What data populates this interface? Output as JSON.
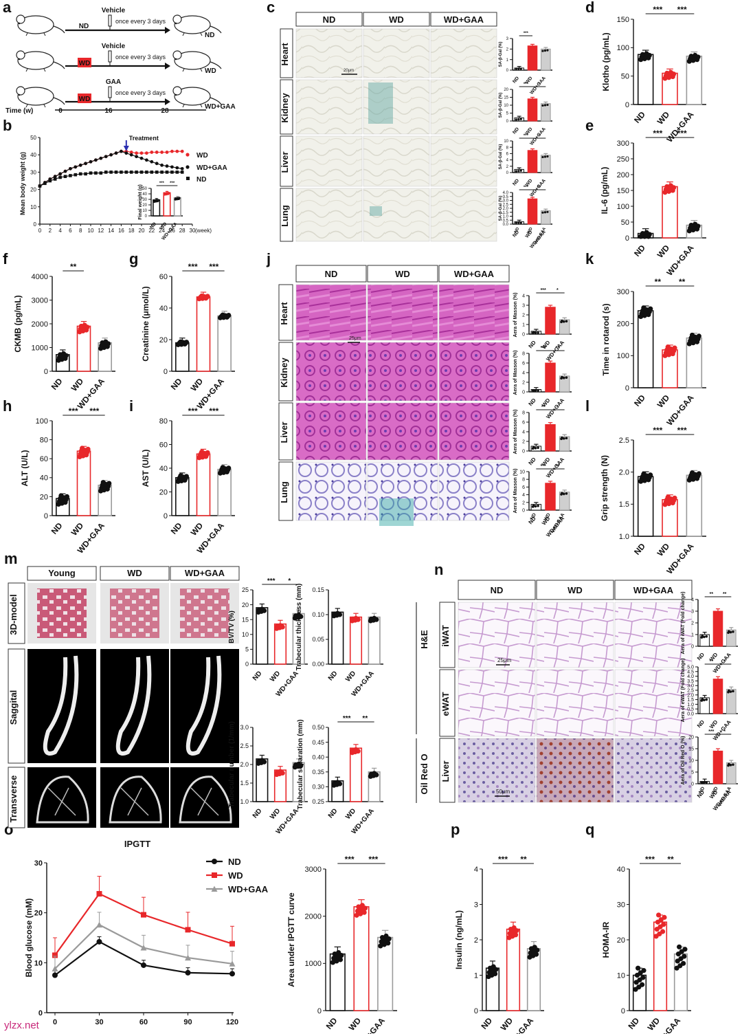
{
  "panels": {
    "a": {
      "letter": "a",
      "rows": [
        {
          "group": "ND",
          "treatment": "Vehicle",
          "schedule": "once every 3 days",
          "end": "ND",
          "red": false
        },
        {
          "group": "WD",
          "treatment": "Vehicle",
          "schedule": "once every 3 days",
          "end": "WD",
          "red": true
        },
        {
          "group": "WD",
          "treatment": "GAA",
          "schedule": "once every 3 days",
          "end": "WD+GAA",
          "red": true
        }
      ],
      "time_label": "Time (w)",
      "time_ticks": [
        "0",
        "16",
        "28"
      ]
    },
    "b": {
      "letter": "b",
      "arrow_label": "Treatment",
      "inset_ylabel": "Final weight (g)"
    },
    "c": {
      "letter": "c",
      "columns": [
        "ND",
        "WD",
        "WD+GAA"
      ],
      "rows": [
        "Heart",
        "Kidney",
        "Liver",
        "Lung"
      ],
      "scale": "20μm",
      "ylabel": "SA-β-Gal (%)"
    },
    "j": {
      "letter": "j",
      "columns": [
        "ND",
        "WD",
        "WD+GAA"
      ],
      "rows": [
        "Heart",
        "Kidney",
        "Liver",
        "Lung"
      ],
      "scale": "25μm",
      "ylabel": "Aera of Masson (%)"
    },
    "m": {
      "letter": "m",
      "columns": [
        "Young",
        "WD",
        "WD+GAA"
      ],
      "rows": [
        "3D-model",
        "Saggital",
        "Transverse"
      ]
    },
    "n": {
      "letter": "n",
      "columns": [
        "ND",
        "WD",
        "WD+GAA"
      ],
      "rows": [
        "iWAT",
        "eWAT",
        "Liver"
      ],
      "groups": [
        "H&E",
        "Oil Red O"
      ],
      "scale1": "25μm",
      "scale2": "50μm"
    },
    "o": {
      "letter": "o"
    },
    "p": {
      "letter": "p"
    },
    "q": {
      "letter": "q"
    },
    "d": {
      "letter": "d"
    },
    "e": {
      "letter": "e"
    },
    "f": {
      "letter": "f"
    },
    "g": {
      "letter": "g"
    },
    "h": {
      "letter": "h"
    },
    "i": {
      "letter": "i"
    },
    "k": {
      "letter": "k"
    },
    "l": {
      "letter": "l"
    }
  },
  "groups3": [
    "ND",
    "WD",
    "WD+GAA"
  ],
  "watermark": "ylzx.net",
  "colors": {
    "nd": "#111111",
    "wd": "#e8272a",
    "gaa": "#9a9a9a",
    "he_pink": "#d9a9d4",
    "masson": "#cc4db0"
  },
  "chart_data": [
    {
      "id": "b",
      "type": "line",
      "xlabel": "(week)",
      "ylabel": "Mean body weight (g)",
      "x": [
        0,
        1,
        2,
        3,
        4,
        5,
        6,
        7,
        8,
        9,
        10,
        11,
        12,
        13,
        14,
        15,
        16,
        17,
        18,
        19,
        20,
        21,
        22,
        23,
        24,
        25,
        26,
        27,
        28
      ],
      "xticks": [
        0,
        2,
        4,
        6,
        8,
        10,
        12,
        14,
        16,
        18,
        20,
        22,
        24,
        26,
        28,
        30
      ],
      "ylim": [
        0,
        50
      ],
      "yticks": [
        0,
        10,
        20,
        30,
        40,
        50
      ],
      "series": [
        {
          "name": "WD",
          "values": [
            22,
            24,
            26,
            27.5,
            29,
            30.5,
            32,
            33,
            34,
            35,
            36,
            37,
            38,
            39,
            40,
            41,
            42,
            42,
            41.5,
            41,
            41,
            41,
            41.5,
            41.5,
            41.5,
            41.5,
            42,
            42,
            42
          ]
        },
        {
          "name": "WD+GAA",
          "values": [
            22,
            24,
            26,
            27.5,
            29,
            30.5,
            32,
            33,
            34,
            35,
            36,
            37,
            38,
            39,
            40,
            41,
            42,
            41,
            40,
            39,
            38,
            37,
            36,
            35,
            34,
            33.5,
            33,
            32.5,
            32
          ]
        },
        {
          "name": "ND",
          "values": [
            22,
            23.5,
            25,
            26,
            27,
            27.5,
            28,
            28.5,
            29,
            29,
            29.5,
            29.5,
            29.5,
            30,
            30,
            30,
            30,
            30,
            30,
            30,
            30,
            30,
            30,
            30,
            30,
            30,
            30,
            30,
            30
          ]
        }
      ]
    },
    {
      "id": "b-inset",
      "type": "bar",
      "ylabel": "Final weight (g)",
      "ylim": [
        0,
        50
      ],
      "yticks": [
        0,
        10,
        20,
        30,
        40,
        50
      ],
      "values": [
        29,
        42,
        33
      ],
      "sig": [
        "***",
        "***"
      ]
    },
    {
      "id": "c-heart",
      "type": "bar",
      "ylabel": "SA-β-Gal (%)",
      "ylim": [
        0,
        3
      ],
      "yticks": [
        0,
        1,
        2,
        3
      ],
      "values": [
        0.2,
        2.3,
        2.0
      ],
      "sig": [
        "***"
      ]
    },
    {
      "id": "c-kidney",
      "type": "bar",
      "ylabel": "SA-β-Gal (%)",
      "ylim": [
        0,
        20
      ],
      "yticks": [
        0,
        5,
        10,
        15,
        20
      ],
      "values": [
        2,
        14,
        11
      ],
      "sig": [
        "***",
        "*"
      ]
    },
    {
      "id": "c-liver",
      "type": "bar",
      "ylabel": "SA-β-Gal (%)",
      "ylim": [
        0,
        10
      ],
      "yticks": [
        0,
        2,
        4,
        6,
        8,
        10
      ],
      "values": [
        1,
        7,
        5.5
      ],
      "sig": [
        "***",
        "*"
      ]
    },
    {
      "id": "c-lung",
      "type": "bar",
      "ylabel": "SA-β-Gal (%)",
      "ylim": [
        0,
        4
      ],
      "yticks": [
        0,
        0.5,
        1,
        1.5,
        2,
        2.5,
        3,
        3.5,
        4
      ],
      "values": [
        0.3,
        3.2,
        1.7
      ],
      "sig": [
        "***",
        "**"
      ]
    },
    {
      "id": "d",
      "type": "bar",
      "ylabel": "Klotho (pg/mL)",
      "ylim": [
        0,
        150
      ],
      "yticks": [
        0,
        50,
        100,
        150
      ],
      "values": [
        88,
        55,
        85
      ],
      "sig": [
        "***",
        "***"
      ]
    },
    {
      "id": "e",
      "type": "bar",
      "ylabel": "IL-6 (pg/mL)",
      "ylim": [
        0,
        300
      ],
      "yticks": [
        0,
        50,
        100,
        150,
        200,
        250,
        300
      ],
      "values": [
        14,
        162,
        40
      ],
      "sig": [
        "***",
        "***"
      ]
    },
    {
      "id": "f",
      "type": "bar",
      "ylabel": "CKMB (pg/mL)",
      "ylim": [
        0,
        4000
      ],
      "yticks": [
        0,
        1000,
        2000,
        3000,
        4000
      ],
      "values": [
        700,
        1900,
        1200
      ],
      "sig": [
        "**"
      ]
    },
    {
      "id": "g",
      "type": "bar",
      "ylabel": "Creatinine (μmol/L)",
      "ylim": [
        0,
        60
      ],
      "yticks": [
        0,
        20,
        40,
        60
      ],
      "values": [
        18,
        47,
        35
      ],
      "sig": [
        "***",
        "***"
      ]
    },
    {
      "id": "h",
      "type": "bar",
      "ylabel": "ALT (U/L)",
      "ylim": [
        0,
        100
      ],
      "yticks": [
        0,
        20,
        40,
        60,
        80,
        100
      ],
      "values": [
        18,
        68,
        32
      ],
      "sig": [
        "***",
        "***"
      ]
    },
    {
      "id": "i",
      "type": "bar",
      "ylabel": "AST (U/L)",
      "ylim": [
        0,
        80
      ],
      "yticks": [
        0,
        20,
        40,
        60,
        80
      ],
      "values": [
        32,
        52,
        39
      ],
      "sig": [
        "***",
        "***"
      ]
    },
    {
      "id": "j-heart",
      "type": "bar",
      "ylabel": "Aera of Masson (%)",
      "ylim": [
        0,
        4
      ],
      "yticks": [
        0,
        1,
        2,
        3,
        4
      ],
      "values": [
        0.3,
        2.8,
        1.5
      ],
      "sig": [
        "***",
        "*"
      ]
    },
    {
      "id": "j-kidney",
      "type": "bar",
      "ylabel": "Aera of Masson (%)",
      "ylim": [
        0,
        8
      ],
      "yticks": [
        0,
        2,
        4,
        6,
        8
      ],
      "values": [
        0.5,
        6,
        3.3
      ],
      "sig": [
        "***",
        "**"
      ]
    },
    {
      "id": "j-liver",
      "type": "bar",
      "ylabel": "Aera of Masson (%)",
      "ylim": [
        0,
        8
      ],
      "yticks": [
        0,
        2,
        4,
        6,
        8
      ],
      "values": [
        1,
        5.5,
        3
      ],
      "sig": [
        "**",
        "*"
      ]
    },
    {
      "id": "j-lung",
      "type": "bar",
      "ylabel": "Aera of Masson (%)",
      "ylim": [
        0,
        10
      ],
      "yticks": [
        0,
        2,
        4,
        6,
        8,
        10
      ],
      "values": [
        1.5,
        7,
        4.7
      ],
      "sig": [
        "***",
        "**"
      ]
    },
    {
      "id": "k",
      "type": "bar",
      "ylabel": "Time in rotarod (s)",
      "ylim": [
        0,
        300
      ],
      "yticks": [
        0,
        100,
        200,
        300
      ],
      "values": [
        240,
        118,
        155
      ],
      "sig": [
        "**",
        "**"
      ]
    },
    {
      "id": "l",
      "type": "bar",
      "ylabel": "Grip strength (N)",
      "ylim": [
        1.0,
        2.5
      ],
      "yticks": [
        1.0,
        1.5,
        2.0,
        2.5
      ],
      "values": [
        1.93,
        1.57,
        1.95
      ],
      "sig": [
        "***",
        "***"
      ]
    },
    {
      "id": "m-bvtv",
      "type": "bar",
      "ylabel": "BV/TV (%)",
      "ylim": [
        0,
        25
      ],
      "yticks": [
        0,
        5,
        10,
        15,
        20,
        25
      ],
      "values": [
        19,
        13.5,
        17
      ],
      "sig": [
        "***",
        "*"
      ]
    },
    {
      "id": "m-tbth",
      "type": "bar",
      "ylabel": "Trabecular thickness (mm)",
      "ylim": [
        0,
        0.15
      ],
      "yticks": [
        0,
        0.05,
        0.1,
        0.15
      ],
      "values": [
        0.105,
        0.095,
        0.095
      ],
      "sig": []
    },
    {
      "id": "m-tbn",
      "type": "bar",
      "ylabel": "Trabecular number (1/mm)",
      "ylim": [
        1.0,
        3.0
      ],
      "yticks": [
        1.0,
        1.5,
        2.0,
        2.5,
        3.0
      ],
      "values": [
        2.15,
        1.85,
        2.05
      ],
      "sig": []
    },
    {
      "id": "m-tbsp",
      "type": "bar",
      "ylabel": "Trabecular separation (mm)",
      "ylim": [
        0.25,
        0.5
      ],
      "yticks": [
        0.25,
        0.3,
        0.35,
        0.4,
        0.45,
        0.5
      ],
      "values": [
        0.32,
        0.43,
        0.35
      ],
      "sig": [
        "***",
        "**"
      ]
    },
    {
      "id": "n-iwat",
      "type": "bar",
      "ylabel": "Aera of iWAT (Fold change)",
      "ylim": [
        0,
        4
      ],
      "yticks": [
        0,
        1,
        2,
        3,
        4
      ],
      "values": [
        1,
        3,
        1.4
      ],
      "sig": [
        "**",
        "**"
      ]
    },
    {
      "id": "n-ewat",
      "type": "bar",
      "ylabel": "Aera of eWAT (Fold change)",
      "ylim": [
        0,
        5
      ],
      "yticks": [
        0,
        0.5,
        1,
        1.5,
        2,
        2.5,
        3,
        3.5,
        4,
        4.5,
        5
      ],
      "values": [
        1.7,
        3.7,
        2.6
      ],
      "sig": [
        "**",
        "*"
      ]
    },
    {
      "id": "n-oil",
      "type": "bar",
      "ylabel": "Aera of Oil Red O (%)",
      "ylim": [
        0,
        20
      ],
      "yticks": [
        0,
        5,
        10,
        15,
        20
      ],
      "values": [
        1,
        14,
        9
      ],
      "sig": [
        "***",
        "*"
      ]
    },
    {
      "id": "o",
      "type": "line",
      "title": "IPGTT",
      "ylabel": "Blood glucose (mM)",
      "x": [
        0,
        30,
        60,
        90,
        120
      ],
      "xticks": [
        0,
        30,
        60,
        90,
        120
      ],
      "ylim": [
        0,
        30
      ],
      "yticks": [
        0,
        10,
        20,
        30
      ],
      "series": [
        {
          "name": "ND",
          "values": [
            7.5,
            14.2,
            9.5,
            8,
            7.8
          ]
        },
        {
          "name": "WD",
          "values": [
            11.5,
            23.8,
            19.6,
            16.6,
            13.8
          ]
        },
        {
          "name": "WD+GAA",
          "values": [
            8.8,
            17.6,
            13,
            11,
            9.8
          ]
        }
      ]
    },
    {
      "id": "o-auc",
      "type": "bar",
      "ylabel": "Area under IPGTT curve",
      "ylim": [
        0,
        3000
      ],
      "yticks": [
        0,
        1000,
        2000,
        3000
      ],
      "values": [
        1200,
        2200,
        1550
      ],
      "sig": [
        "***",
        "***"
      ]
    },
    {
      "id": "p",
      "type": "bar",
      "ylabel": "Insulin (ng/mL)",
      "ylim": [
        0,
        4
      ],
      "yticks": [
        0,
        1,
        2,
        3,
        4
      ],
      "values": [
        1.2,
        2.3,
        1.75
      ],
      "sig": [
        "***",
        "**"
      ]
    },
    {
      "id": "q",
      "type": "bar",
      "ylabel": "HOMA-IR",
      "ylim": [
        0,
        40
      ],
      "yticks": [
        0,
        10,
        20,
        30,
        40
      ],
      "values": [
        10,
        25,
        16
      ],
      "sig": [
        "***",
        "**"
      ]
    }
  ]
}
